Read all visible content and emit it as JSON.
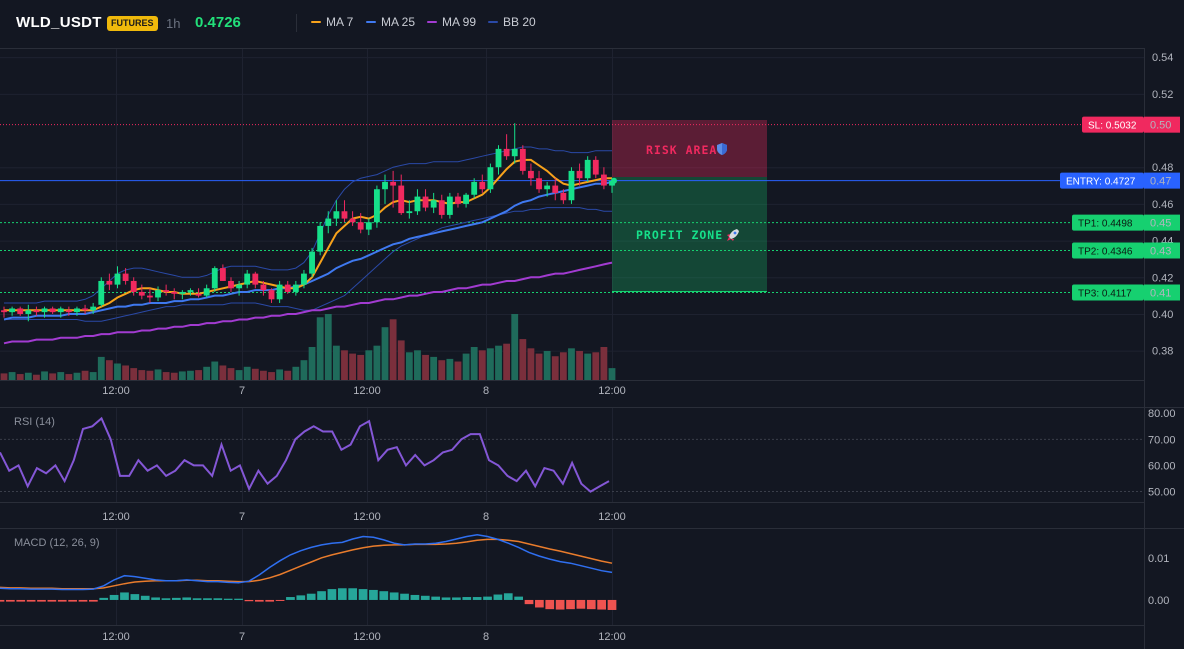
{
  "header": {
    "symbol": "WLD_USDT",
    "badge": "FUTURES",
    "timeframe": "1h",
    "last_price": "0.4726",
    "indicators": [
      {
        "label": "MA 7",
        "color": "#f7a21b"
      },
      {
        "label": "MA 25",
        "color": "#3f79f0"
      },
      {
        "label": "MA 99",
        "color": "#a23bd1"
      },
      {
        "label": "BB 20",
        "color": "#2a49a6"
      }
    ]
  },
  "colors": {
    "background": "#131722",
    "up": "#16e08a",
    "down": "#f0295f",
    "vol_up": "#1f6b5b",
    "vol_down": "#7a2f3c",
    "rsi": "#8457d6",
    "macd": "#2f6ff0",
    "signal": "#e97c2c",
    "hist_up": "#26a69a",
    "hist_down": "#ef5350",
    "entry": "#2962ff",
    "sl": "#f0295f",
    "tp": "#16d070"
  },
  "chart_data": [
    {
      "type": "candlestick",
      "pane": "price",
      "x_tick_labels": [
        "12:00",
        "7",
        "12:00",
        "8",
        "12:00"
      ],
      "y_ticks": [
        0.54,
        0.52,
        0.48,
        0.46,
        0.44,
        0.42,
        0.4,
        0.38
      ],
      "ylim": [
        0.364,
        0.545
      ],
      "ohlc": [
        [
          0.402,
          0.404,
          0.398,
          0.401
        ],
        [
          0.401,
          0.404,
          0.399,
          0.403
        ],
        [
          0.403,
          0.404,
          0.399,
          0.4
        ],
        [
          0.4,
          0.405,
          0.396,
          0.402
        ],
        [
          0.402,
          0.404,
          0.399,
          0.401
        ],
        [
          0.401,
          0.404,
          0.398,
          0.403
        ],
        [
          0.403,
          0.404,
          0.4,
          0.401
        ],
        [
          0.401,
          0.404,
          0.398,
          0.403
        ],
        [
          0.402,
          0.404,
          0.399,
          0.401
        ],
        [
          0.401,
          0.404,
          0.399,
          0.403
        ],
        [
          0.403,
          0.405,
          0.4,
          0.402
        ],
        [
          0.402,
          0.406,
          0.4,
          0.404
        ],
        [
          0.405,
          0.42,
          0.404,
          0.418
        ],
        [
          0.418,
          0.422,
          0.413,
          0.416
        ],
        [
          0.416,
          0.426,
          0.414,
          0.422
        ],
        [
          0.422,
          0.425,
          0.416,
          0.418
        ],
        [
          0.418,
          0.42,
          0.41,
          0.412
        ],
        [
          0.412,
          0.416,
          0.408,
          0.41
        ],
        [
          0.41,
          0.414,
          0.406,
          0.409
        ],
        [
          0.409,
          0.415,
          0.407,
          0.413
        ],
        [
          0.413,
          0.416,
          0.41,
          0.412
        ],
        [
          0.412,
          0.414,
          0.408,
          0.411
        ],
        [
          0.411,
          0.413,
          0.408,
          0.412
        ],
        [
          0.412,
          0.414,
          0.41,
          0.413
        ],
        [
          0.411,
          0.414,
          0.409,
          0.41
        ],
        [
          0.41,
          0.416,
          0.409,
          0.414
        ],
        [
          0.414,
          0.426,
          0.412,
          0.425
        ],
        [
          0.425,
          0.427,
          0.418,
          0.418
        ],
        [
          0.418,
          0.42,
          0.412,
          0.414
        ],
        [
          0.414,
          0.418,
          0.41,
          0.416
        ],
        [
          0.416,
          0.424,
          0.414,
          0.422
        ],
        [
          0.422,
          0.423,
          0.414,
          0.416
        ],
        [
          0.416,
          0.418,
          0.41,
          0.413
        ],
        [
          0.413,
          0.414,
          0.406,
          0.408
        ],
        [
          0.408,
          0.418,
          0.406,
          0.416
        ],
        [
          0.416,
          0.418,
          0.411,
          0.412
        ],
        [
          0.412,
          0.418,
          0.41,
          0.416
        ],
        [
          0.416,
          0.424,
          0.414,
          0.422
        ],
        [
          0.422,
          0.436,
          0.42,
          0.434
        ],
        [
          0.434,
          0.45,
          0.432,
          0.448
        ],
        [
          0.448,
          0.456,
          0.444,
          0.452
        ],
        [
          0.452,
          0.462,
          0.448,
          0.456
        ],
        [
          0.456,
          0.462,
          0.45,
          0.452
        ],
        [
          0.452,
          0.456,
          0.448,
          0.45
        ],
        [
          0.45,
          0.455,
          0.444,
          0.446
        ],
        [
          0.446,
          0.452,
          0.443,
          0.45
        ],
        [
          0.45,
          0.47,
          0.447,
          0.468
        ],
        [
          0.468,
          0.476,
          0.46,
          0.472
        ],
        [
          0.472,
          0.478,
          0.458,
          0.47
        ],
        [
          0.47,
          0.476,
          0.454,
          0.455
        ],
        [
          0.455,
          0.462,
          0.452,
          0.456
        ],
        [
          0.456,
          0.468,
          0.454,
          0.464
        ],
        [
          0.464,
          0.468,
          0.456,
          0.458
        ],
        [
          0.458,
          0.466,
          0.455,
          0.462
        ],
        [
          0.462,
          0.465,
          0.452,
          0.454
        ],
        [
          0.454,
          0.466,
          0.452,
          0.464
        ],
        [
          0.464,
          0.466,
          0.458,
          0.46
        ],
        [
          0.46,
          0.466,
          0.458,
          0.465
        ],
        [
          0.465,
          0.474,
          0.463,
          0.472
        ],
        [
          0.472,
          0.476,
          0.466,
          0.468
        ],
        [
          0.468,
          0.482,
          0.466,
          0.48
        ],
        [
          0.48,
          0.492,
          0.476,
          0.49
        ],
        [
          0.49,
          0.498,
          0.484,
          0.486
        ],
        [
          0.486,
          0.504,
          0.482,
          0.49
        ],
        [
          0.49,
          0.492,
          0.476,
          0.478
        ],
        [
          0.478,
          0.482,
          0.47,
          0.474
        ],
        [
          0.474,
          0.478,
          0.466,
          0.468
        ],
        [
          0.468,
          0.472,
          0.464,
          0.47
        ],
        [
          0.47,
          0.474,
          0.462,
          0.466
        ],
        [
          0.466,
          0.468,
          0.46,
          0.462
        ],
        [
          0.462,
          0.48,
          0.46,
          0.478
        ],
        [
          0.478,
          0.482,
          0.47,
          0.474
        ],
        [
          0.474,
          0.486,
          0.472,
          0.484
        ],
        [
          0.484,
          0.486,
          0.474,
          0.476
        ],
        [
          0.476,
          0.48,
          0.468,
          0.47
        ],
        [
          0.47,
          0.474,
          0.466,
          0.4726
        ]
      ],
      "volume_ratio": [
        0.1,
        0.12,
        0.09,
        0.11,
        0.08,
        0.13,
        0.1,
        0.12,
        0.09,
        0.11,
        0.14,
        0.12,
        0.35,
        0.3,
        0.25,
        0.22,
        0.18,
        0.15,
        0.14,
        0.16,
        0.12,
        0.11,
        0.13,
        0.14,
        0.15,
        0.2,
        0.28,
        0.22,
        0.18,
        0.15,
        0.2,
        0.17,
        0.14,
        0.12,
        0.16,
        0.14,
        0.2,
        0.3,
        0.5,
        0.95,
        1.0,
        0.52,
        0.45,
        0.4,
        0.38,
        0.45,
        0.52,
        0.8,
        0.92,
        0.6,
        0.42,
        0.45,
        0.38,
        0.35,
        0.3,
        0.32,
        0.28,
        0.4,
        0.5,
        0.45,
        0.48,
        0.52,
        0.55,
        1.0,
        0.62,
        0.48,
        0.4,
        0.44,
        0.36,
        0.42,
        0.48,
        0.44,
        0.4,
        0.42,
        0.5,
        0.18
      ],
      "ma7": [
        0.402,
        0.402,
        0.402,
        0.402,
        0.402,
        0.402,
        0.402,
        0.402,
        0.402,
        0.402,
        0.402,
        0.402,
        0.404,
        0.406,
        0.409,
        0.411,
        0.413,
        0.414,
        0.414,
        0.413,
        0.412,
        0.412,
        0.411,
        0.411,
        0.411,
        0.412,
        0.413,
        0.414,
        0.415,
        0.416,
        0.417,
        0.418,
        0.417,
        0.416,
        0.415,
        0.414,
        0.414,
        0.416,
        0.42,
        0.428,
        0.436,
        0.444,
        0.448,
        0.452,
        0.453,
        0.452,
        0.454,
        0.458,
        0.461,
        0.462,
        0.461,
        0.462,
        0.462,
        0.462,
        0.461,
        0.46,
        0.461,
        0.461,
        0.463,
        0.465,
        0.469,
        0.474,
        0.479,
        0.483,
        0.484,
        0.484,
        0.481,
        0.478,
        0.474,
        0.471,
        0.47,
        0.471,
        0.472,
        0.473,
        0.474,
        0.474
      ],
      "ma25": [
        0.397,
        0.398,
        0.398,
        0.398,
        0.399,
        0.399,
        0.399,
        0.399,
        0.4,
        0.4,
        0.4,
        0.401,
        0.402,
        0.403,
        0.404,
        0.404,
        0.405,
        0.405,
        0.406,
        0.406,
        0.406,
        0.407,
        0.407,
        0.408,
        0.408,
        0.409,
        0.41,
        0.41,
        0.411,
        0.412,
        0.412,
        0.413,
        0.413,
        0.413,
        0.414,
        0.414,
        0.415,
        0.416,
        0.418,
        0.42,
        0.422,
        0.425,
        0.427,
        0.429,
        0.43,
        0.432,
        0.434,
        0.436,
        0.438,
        0.439,
        0.441,
        0.442,
        0.443,
        0.444,
        0.445,
        0.446,
        0.447,
        0.448,
        0.449,
        0.45,
        0.452,
        0.454,
        0.456,
        0.459,
        0.461,
        0.462,
        0.464,
        0.465,
        0.466,
        0.467,
        0.468,
        0.469,
        0.47,
        0.471,
        0.471,
        0.472
      ],
      "ma99": [
        0.384,
        0.385,
        0.385,
        0.385,
        0.386,
        0.386,
        0.386,
        0.387,
        0.387,
        0.387,
        0.388,
        0.388,
        0.389,
        0.389,
        0.39,
        0.39,
        0.39,
        0.391,
        0.391,
        0.392,
        0.392,
        0.393,
        0.393,
        0.394,
        0.394,
        0.395,
        0.395,
        0.396,
        0.396,
        0.397,
        0.397,
        0.398,
        0.398,
        0.399,
        0.399,
        0.4,
        0.4,
        0.401,
        0.402,
        0.402,
        0.403,
        0.404,
        0.404,
        0.405,
        0.406,
        0.406,
        0.407,
        0.408,
        0.408,
        0.409,
        0.41,
        0.41,
        0.411,
        0.412,
        0.412,
        0.413,
        0.414,
        0.414,
        0.415,
        0.416,
        0.416,
        0.417,
        0.418,
        0.418,
        0.419,
        0.42,
        0.42,
        0.421,
        0.422,
        0.422,
        0.423,
        0.424,
        0.425,
        0.426,
        0.427,
        0.428
      ],
      "bb_upper": [
        0.406,
        0.406,
        0.406,
        0.406,
        0.406,
        0.407,
        0.407,
        0.407,
        0.407,
        0.407,
        0.408,
        0.41,
        0.414,
        0.418,
        0.422,
        0.424,
        0.425,
        0.425,
        0.424,
        0.423,
        0.422,
        0.421,
        0.42,
        0.42,
        0.42,
        0.421,
        0.423,
        0.425,
        0.426,
        0.426,
        0.426,
        0.426,
        0.425,
        0.424,
        0.424,
        0.424,
        0.425,
        0.428,
        0.434,
        0.444,
        0.454,
        0.462,
        0.468,
        0.472,
        0.474,
        0.475,
        0.476,
        0.478,
        0.48,
        0.481,
        0.482,
        0.482,
        0.482,
        0.483,
        0.483,
        0.483,
        0.483,
        0.484,
        0.485,
        0.486,
        0.487,
        0.488,
        0.489,
        0.49,
        0.491,
        0.491,
        0.49,
        0.49,
        0.489,
        0.489,
        0.488,
        0.488,
        0.488,
        0.489,
        0.489,
        0.489
      ],
      "bb_lower": [
        0.397,
        0.397,
        0.397,
        0.397,
        0.397,
        0.397,
        0.397,
        0.397,
        0.397,
        0.397,
        0.396,
        0.396,
        0.396,
        0.397,
        0.398,
        0.399,
        0.4,
        0.401,
        0.402,
        0.403,
        0.404,
        0.404,
        0.405,
        0.405,
        0.405,
        0.405,
        0.405,
        0.405,
        0.406,
        0.406,
        0.406,
        0.406,
        0.405,
        0.404,
        0.404,
        0.404,
        0.403,
        0.402,
        0.402,
        0.404,
        0.406,
        0.408,
        0.41,
        0.414,
        0.418,
        0.422,
        0.426,
        0.43,
        0.434,
        0.437,
        0.439,
        0.441,
        0.443,
        0.445,
        0.447,
        0.448,
        0.449,
        0.45,
        0.451,
        0.452,
        0.453,
        0.454,
        0.455,
        0.456,
        0.456,
        0.457,
        0.457,
        0.458,
        0.458,
        0.458,
        0.458,
        0.458,
        0.457,
        0.457,
        0.456,
        0.456
      ],
      "entry": 0.4727,
      "sl": 0.5032,
      "tp": [
        0.4498,
        0.4346,
        0.4117
      ]
    },
    {
      "type": "line",
      "pane": "rsi",
      "title": "RSI (14)",
      "y_ticks": [
        80,
        70,
        60,
        50
      ],
      "ylim": [
        46,
        82
      ],
      "values": [
        65,
        58,
        60,
        52,
        59,
        57,
        60,
        54,
        62,
        74,
        75,
        78,
        70,
        56,
        56,
        62,
        58,
        60,
        56,
        58,
        62,
        60,
        60,
        56,
        68,
        58,
        60,
        51,
        58,
        53,
        56,
        62,
        70,
        73,
        75,
        73,
        73,
        66,
        68,
        75,
        77,
        62,
        66,
        67,
        60,
        64,
        60,
        62,
        65,
        66,
        70,
        72,
        72,
        62,
        60,
        56,
        54,
        58,
        52,
        59,
        58,
        53,
        61,
        53,
        50,
        52,
        54
      ]
    },
    {
      "type": "line",
      "pane": "macd",
      "title": "MACD (12, 26, 9)",
      "y_ticks": [
        0.01,
        0.0
      ],
      "ylim": [
        -0.006,
        0.017
      ],
      "macd": [
        0.0028,
        0.0027,
        0.0027,
        0.0026,
        0.0026,
        0.0026,
        0.0025,
        0.0025,
        0.0025,
        0.0026,
        0.0034,
        0.0048,
        0.0058,
        0.0056,
        0.0052,
        0.0048,
        0.0046,
        0.0046,
        0.0048,
        0.0046,
        0.0044,
        0.0044,
        0.0042,
        0.0041,
        0.0045,
        0.006,
        0.0078,
        0.0094,
        0.0108,
        0.0118,
        0.0126,
        0.0132,
        0.0136,
        0.0138,
        0.0146,
        0.0152,
        0.015,
        0.0144,
        0.0136,
        0.0132,
        0.0134,
        0.0134,
        0.0136,
        0.014,
        0.0146,
        0.0152,
        0.0156,
        0.0152,
        0.0145,
        0.0136,
        0.0126,
        0.0114,
        0.0105,
        0.0098,
        0.0092,
        0.0088,
        0.0082,
        0.0076,
        0.007,
        0.0066
      ],
      "signal": [
        0.003,
        0.0029,
        0.0029,
        0.0028,
        0.0028,
        0.0028,
        0.0027,
        0.0027,
        0.0027,
        0.0027,
        0.0029,
        0.0034,
        0.0039,
        0.0043,
        0.0045,
        0.0046,
        0.0046,
        0.0046,
        0.0047,
        0.0047,
        0.0046,
        0.0046,
        0.0045,
        0.0044,
        0.0044,
        0.0047,
        0.0053,
        0.0061,
        0.0071,
        0.0081,
        0.0091,
        0.0101,
        0.0108,
        0.0114,
        0.012,
        0.0125,
        0.0129,
        0.0131,
        0.0132,
        0.0132,
        0.0133,
        0.0133,
        0.0133,
        0.0134,
        0.0136,
        0.0139,
        0.0143,
        0.0145,
        0.0145,
        0.0143,
        0.014,
        0.0134,
        0.0128,
        0.0122,
        0.0117,
        0.0111,
        0.0105,
        0.0099,
        0.0093,
        0.0088
      ],
      "hist": [
        -0.0004,
        -0.0004,
        -0.0004,
        -0.0004,
        -0.0004,
        -0.0004,
        -0.0004,
        -0.0004,
        -0.0004,
        -0.0004,
        0.0005,
        0.0012,
        0.0018,
        0.0014,
        0.001,
        0.0006,
        0.0004,
        0.0005,
        0.0006,
        0.0004,
        0.0004,
        0.0004,
        0.0003,
        0.0003,
        -0.0003,
        -0.0004,
        -0.0004,
        -0.0002,
        0.0007,
        0.0011,
        0.0015,
        0.0021,
        0.0026,
        0.0028,
        0.0028,
        0.0026,
        0.0024,
        0.0021,
        0.0018,
        0.0015,
        0.0012,
        0.001,
        0.0008,
        0.0006,
        0.0006,
        0.0007,
        0.0007,
        0.0008,
        0.0013,
        0.0016,
        0.0008,
        -0.001,
        -0.0018,
        -0.0022,
        -0.0023,
        -0.0022,
        -0.0021,
        -0.0022,
        -0.0023,
        -0.0024
      ]
    }
  ],
  "zones": {
    "risk_label": "RISK AREA",
    "risk_icon": "shield-icon",
    "profit_label": "PROFIT ZONE",
    "profit_icon": "rocket-icon"
  },
  "price_tags": {
    "sl": {
      "label": "SL: 0.5032",
      "axis": "0.50"
    },
    "entry": {
      "label": "ENTRY: 0.4727",
      "axis": "0.47"
    },
    "tp": [
      {
        "label": "TP1: 0.4498",
        "axis": "0.45"
      },
      {
        "label": "TP2: 0.4346",
        "axis": "0.43"
      },
      {
        "label": "TP3: 0.4117",
        "axis": "0.41"
      }
    ]
  }
}
